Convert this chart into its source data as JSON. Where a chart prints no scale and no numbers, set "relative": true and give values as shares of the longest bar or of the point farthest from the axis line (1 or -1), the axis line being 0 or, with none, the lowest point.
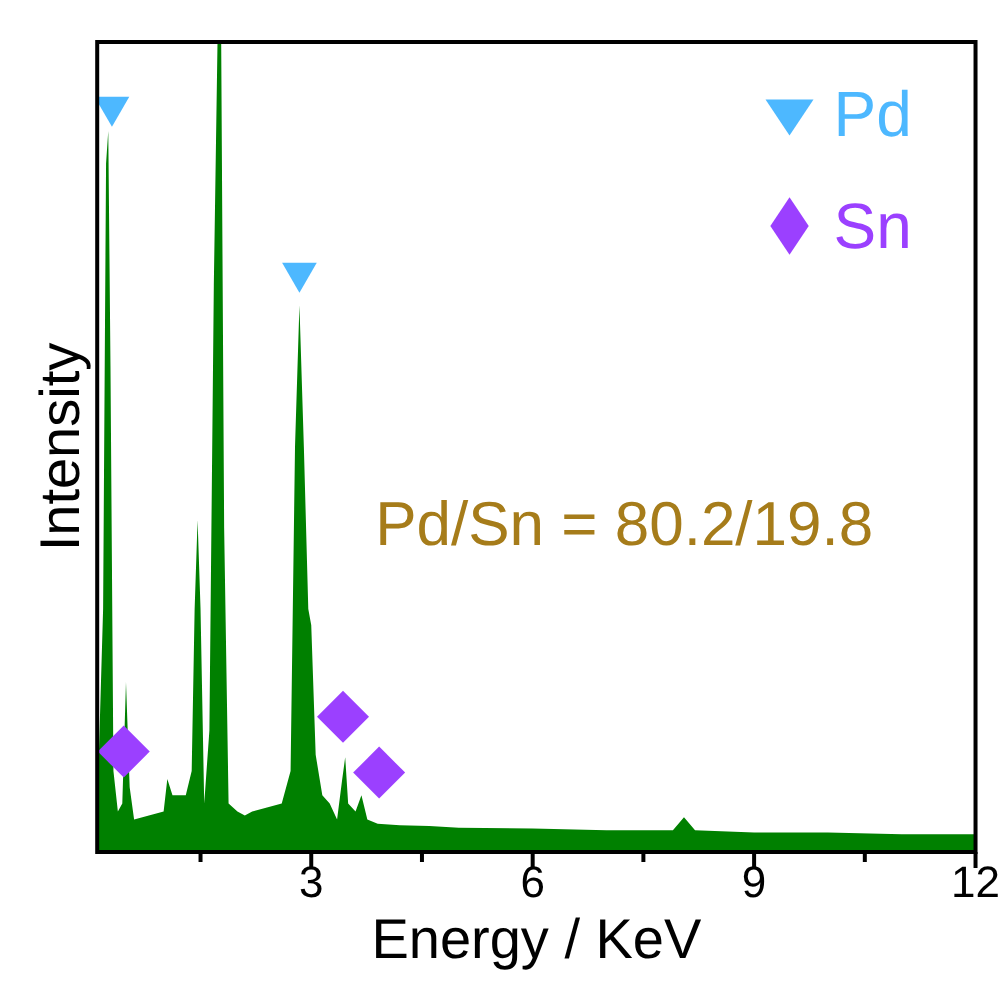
{
  "chart_data": {
    "type": "area",
    "relative": true,
    "xlabel": "Energy / KeV",
    "ylabel": "Intensity",
    "xlim": [
      0.1,
      12
    ],
    "xticks": [
      {
        "value": 1.5,
        "label": null
      },
      3,
      {
        "value": 4.5,
        "label": null
      },
      6,
      {
        "value": 7.5,
        "label": null
      },
      9,
      {
        "value": 10.5,
        "label": null
      },
      12
    ],
    "tick_labels": "x",
    "grid": false,
    "legend": "top right",
    "annotations": [
      "Pd/Sn = 80.2/19.8"
    ],
    "series": [
      {
        "color": "#008000",
        "x": [
          0.1,
          0.18,
          0.22,
          0.25,
          0.28,
          0.32,
          0.38,
          0.44,
          0.49,
          0.54,
          0.6,
          0.8,
          1.0,
          1.05,
          1.12,
          1.2,
          1.3,
          1.38,
          1.42,
          1.46,
          1.5,
          1.55,
          1.62,
          1.68,
          1.73,
          1.78,
          1.82,
          1.88,
          2.0,
          2.1,
          2.2,
          2.4,
          2.6,
          2.72,
          2.78,
          2.84,
          2.9,
          2.96,
          3.0,
          3.06,
          3.15,
          3.25,
          3.35,
          3.42,
          3.46,
          3.5,
          3.6,
          3.68,
          3.76,
          3.9,
          4.2,
          4.6,
          5.0,
          6.0,
          7.0,
          7.9,
          8.05,
          8.2,
          9.0,
          10.0,
          11.0,
          12.0
        ],
        "values": [
          0.05,
          0.3,
          0.85,
          0.89,
          0.6,
          0.1,
          0.05,
          0.06,
          0.21,
          0.08,
          0.04,
          0.045,
          0.05,
          0.09,
          0.07,
          0.07,
          0.07,
          0.1,
          0.3,
          0.41,
          0.3,
          0.06,
          0.15,
          0.7,
          1.0,
          1.0,
          0.4,
          0.06,
          0.05,
          0.045,
          0.05,
          0.055,
          0.06,
          0.1,
          0.5,
          0.675,
          0.5,
          0.3,
          0.28,
          0.12,
          0.07,
          0.06,
          0.04,
          0.09,
          0.117,
          0.06,
          0.05,
          0.07,
          0.04,
          0.035,
          0.033,
          0.032,
          0.03,
          0.029,
          0.027,
          0.027,
          0.043,
          0.027,
          0.024,
          0.024,
          0.022,
          0.022
        ]
      },
      {
        "type": "scatter",
        "name": "Pd",
        "color": "#4db8ff",
        "marker": "triangle",
        "x": [
          0.3,
          2.84
        ],
        "values": [
          0.92,
          0.715
        ]
      },
      {
        "type": "scatter",
        "name": "Sn",
        "color": "#9b40ff",
        "marker": "diamond",
        "x": [
          0.46,
          3.43,
          3.92
        ],
        "values": [
          0.124,
          0.167,
          0.098
        ]
      }
    ]
  }
}
